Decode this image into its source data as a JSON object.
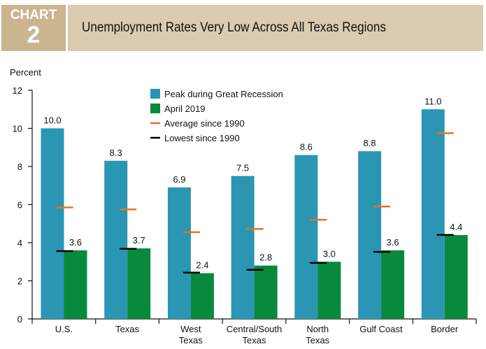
{
  "header": {
    "chart_label": "CHART",
    "chart_number": "2",
    "title": "Unemployment Rates Very Low Across All Texas Regions"
  },
  "colors": {
    "peak": "#2a96b4",
    "april": "#078a3b",
    "average": "#e8731e",
    "lowest": "#000000",
    "header_dark": "#cbb58f",
    "header_light": "#dacbb1"
  },
  "chart_data": {
    "type": "bar",
    "title": "Unemployment Rates Very Low Across All Texas Regions",
    "ylabel": "Percent",
    "xlabel": "",
    "ylim": [
      0,
      12
    ],
    "yticks": [
      0,
      2,
      4,
      6,
      8,
      10,
      12
    ],
    "grid": false,
    "legend_position": "top-center",
    "categories": [
      [
        "U.S."
      ],
      [
        "Texas"
      ],
      [
        "West",
        "Texas"
      ],
      [
        "Central/South",
        "Texas"
      ],
      [
        "North",
        "Texas"
      ],
      [
        "Gulf Coast"
      ],
      [
        "Border"
      ]
    ],
    "series": [
      {
        "name": "Peak during Great Recession",
        "kind": "bar",
        "values": [
          10.0,
          8.3,
          6.9,
          7.5,
          8.6,
          8.8,
          11.0
        ],
        "labels": [
          "10.0",
          "8.3",
          "6.9",
          "7.5",
          "8.6",
          "8.8",
          "11.0"
        ]
      },
      {
        "name": "April 2019",
        "kind": "bar",
        "values": [
          3.6,
          3.7,
          2.4,
          2.8,
          3.0,
          3.6,
          4.4
        ],
        "labels": [
          "3.6",
          "3.7",
          "2.4",
          "2.8",
          "3.0",
          "3.6",
          "4.4"
        ]
      },
      {
        "name": "Average since 1990",
        "kind": "marker",
        "values": [
          5.85,
          5.75,
          4.55,
          4.72,
          5.2,
          5.9,
          9.75
        ]
      },
      {
        "name": "Lowest since 1990",
        "kind": "marker",
        "values": [
          3.56,
          3.68,
          2.43,
          2.58,
          2.94,
          3.52,
          4.41
        ]
      }
    ]
  }
}
